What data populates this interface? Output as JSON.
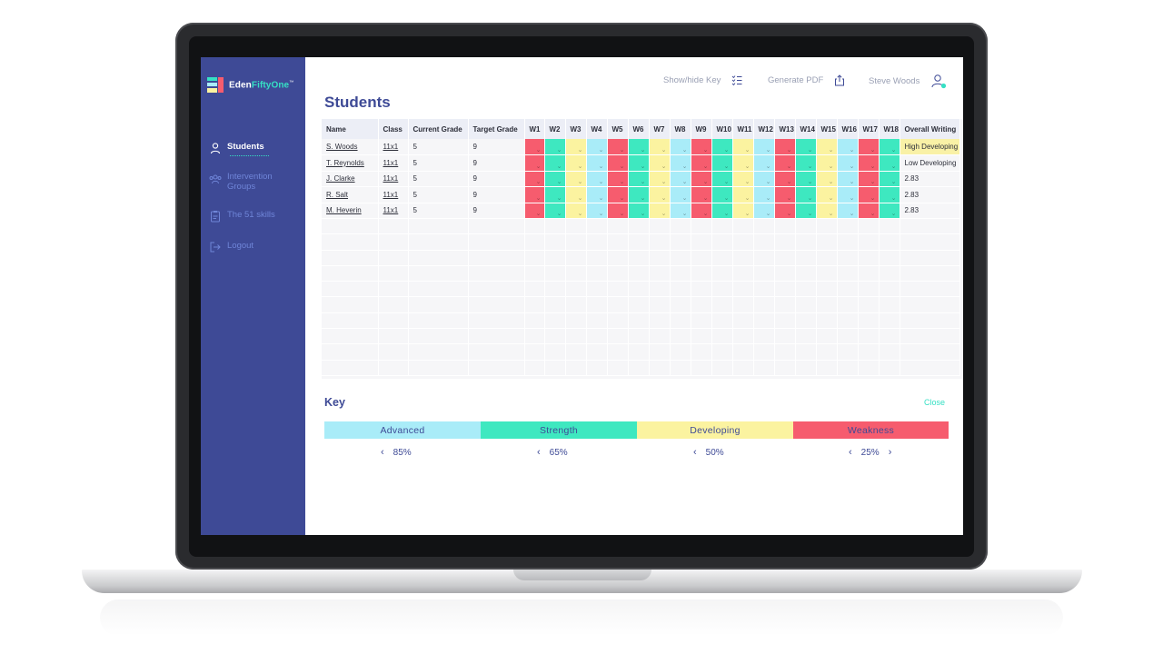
{
  "app": {
    "logo_part1": "Eden",
    "logo_part2": "FiftyOne",
    "logo_tm": "™"
  },
  "sidebar": {
    "items": [
      {
        "label": "Students",
        "icon": "user-icon"
      },
      {
        "label": "Intervention Groups",
        "icon": "users-group-icon"
      },
      {
        "label": "The 51 skills",
        "icon": "clipboard-icon"
      },
      {
        "label": "Logout",
        "icon": "logout-icon"
      }
    ]
  },
  "header": {
    "show_hide_key": "Show/hide Key",
    "generate_pdf": "Generate PDF",
    "user_name": "Steve Woods"
  },
  "page": {
    "title": "Students"
  },
  "table": {
    "columns": [
      "Name",
      "Class",
      "Current Grade",
      "Target Grade",
      "W1",
      "W2",
      "W3",
      "W4",
      "W5",
      "W6",
      "W7",
      "W8",
      "W9",
      "W10",
      "W11",
      "W12",
      "W13",
      "W14",
      "W15",
      "W16",
      "W17",
      "W18",
      "Overall Writing"
    ],
    "rows": [
      {
        "name": "S. Woods",
        "class": "11x1",
        "current": "5",
        "target": "9",
        "overall": "High Developing"
      },
      {
        "name": "T. Reynolds",
        "class": "11x1",
        "current": "5",
        "target": "9",
        "overall": "Low Developing"
      },
      {
        "name": "J. Clarke",
        "class": "11x1",
        "current": "5",
        "target": "9",
        "overall": "2.83"
      },
      {
        "name": "R. Salt",
        "class": "11x1",
        "current": "5",
        "target": "9",
        "overall": "2.83"
      },
      {
        "name": "M. Heverin",
        "class": "11x1",
        "current": "5",
        "target": "9",
        "overall": "2.83"
      }
    ],
    "week_levels": [
      "Weakness",
      "Strength",
      "Developing",
      "Advanced",
      "Weakness",
      "Strength",
      "Developing",
      "Advanced",
      "Weakness",
      "Strength",
      "Developing",
      "Advanced",
      "Weakness",
      "Strength",
      "Developing",
      "Advanced",
      "Weakness",
      "Strength"
    ]
  },
  "key": {
    "title": "Key",
    "close": "Close",
    "levels": [
      {
        "label": "Advanced",
        "color": "#a9ecf8",
        "value": "85%"
      },
      {
        "label": "Strength",
        "color": "#3ee8c0",
        "value": "65%"
      },
      {
        "label": "Developing",
        "color": "#fbf3a0",
        "value": "50%"
      },
      {
        "label": "Weakness",
        "color": "#f65c6e",
        "value": "25%"
      }
    ]
  },
  "colors": {
    "sidebar": "#3e4a96",
    "accent": "#36e0c4",
    "Advanced": "#a9ecf8",
    "Strength": "#3ee8c0",
    "Developing": "#fbf3a0",
    "Weakness": "#f65c6e"
  }
}
